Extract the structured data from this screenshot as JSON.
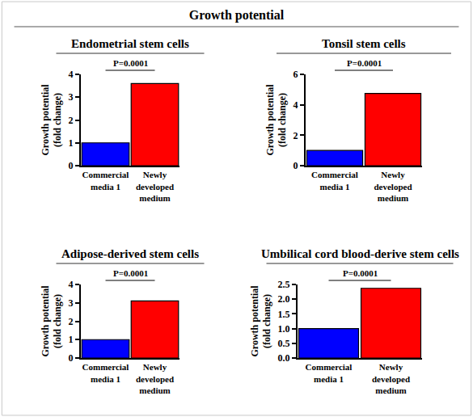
{
  "title": "Growth potential",
  "chart_data": [
    {
      "type": "bar",
      "title": "Endometrial stem cells",
      "categories": [
        "Commercial media 1",
        "Newly developed medium"
      ],
      "values": [
        1,
        3.6
      ],
      "colors": [
        "#0000ff",
        "#ff0000"
      ],
      "y_label": "Growth potential (fold change)",
      "ylim": [
        0,
        4
      ],
      "yticks": [
        0,
        1,
        2,
        3,
        4
      ],
      "grid": false,
      "annotations": [
        "P=0.0001"
      ]
    },
    {
      "type": "bar",
      "title": "Tonsil stem cells",
      "categories": [
        "Commercial media 1",
        "Newly developed medium"
      ],
      "values": [
        1,
        4.75
      ],
      "colors": [
        "#0000ff",
        "#ff0000"
      ],
      "y_label": "Growth potential (fold change)",
      "ylim": [
        0,
        6
      ],
      "yticks": [
        0,
        2,
        4,
        6
      ],
      "grid": false,
      "annotations": [
        "P=0.0001"
      ]
    },
    {
      "type": "bar",
      "title": "Adipose-derived stem cells",
      "categories": [
        "Commercial media 1",
        "Newly developed medium"
      ],
      "values": [
        1,
        3.1
      ],
      "colors": [
        "#0000ff",
        "#ff0000"
      ],
      "y_label": "Growth potential (fold change)",
      "ylim": [
        0,
        4
      ],
      "yticks": [
        0,
        1,
        2,
        3,
        4
      ],
      "grid": false,
      "annotations": [
        "P=0.0001"
      ]
    },
    {
      "type": "bar",
      "title": "Umbilical cord blood-derive stem cells",
      "categories": [
        "Commercial media 1",
        "Newly developed medium"
      ],
      "values": [
        1,
        2.37
      ],
      "colors": [
        "#0000ff",
        "#ff0000"
      ],
      "y_label": "Growth potential (fold change)",
      "ylim": [
        0,
        2.5
      ],
      "yticks": [
        {
          "value": 0,
          "label": "0.0"
        },
        0.5,
        {
          "value": 1,
          "label": "1.0"
        },
        1.5,
        {
          "value": 2,
          "label": "2.0"
        },
        2.5
      ],
      "grid": false,
      "annotations": [
        "P=0.0001"
      ]
    }
  ]
}
